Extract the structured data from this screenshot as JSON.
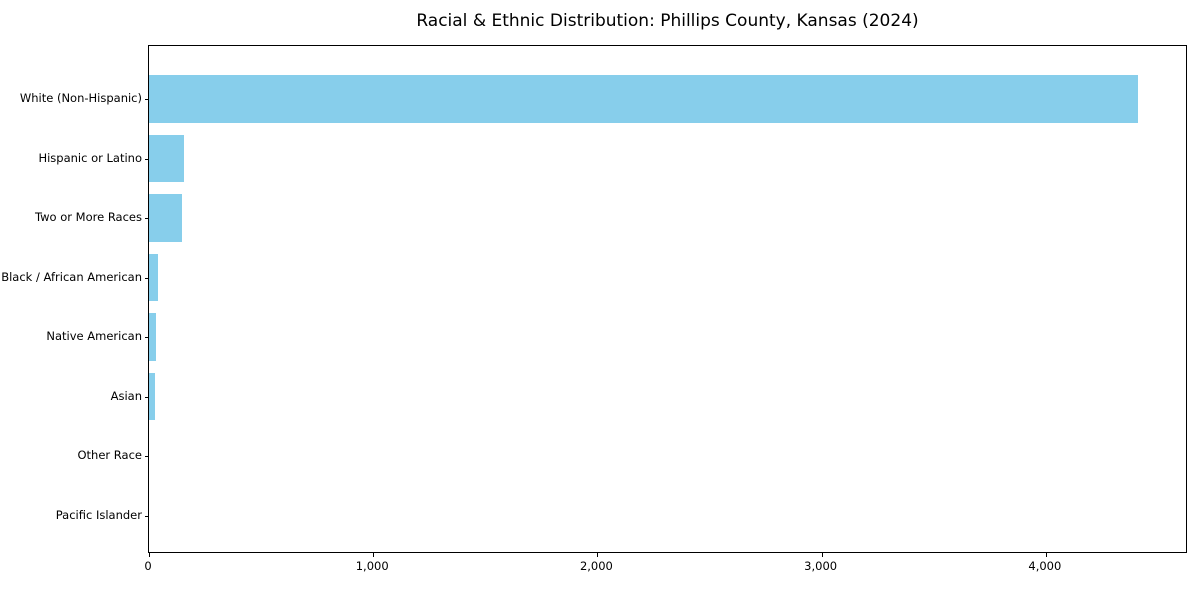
{
  "chart_data": {
    "type": "bar",
    "orientation": "horizontal",
    "title": "Racial & Ethnic Distribution: Phillips County, Kansas (2024)",
    "categories": [
      "White (Non-Hispanic)",
      "Hispanic or Latino",
      "Two or More Races",
      "Black / African American",
      "Native American",
      "Asian",
      "Other Race",
      "Pacific Islander"
    ],
    "values": [
      4410,
      155,
      148,
      39,
      33,
      26,
      0,
      0
    ],
    "xlabel": "",
    "ylabel": "",
    "xticks": [
      0,
      1000,
      2000,
      3000,
      4000
    ],
    "xtick_labels": [
      "0",
      "1,000",
      "2,000",
      "3,000",
      "4,000"
    ],
    "xlim": [
      0,
      4634
    ],
    "grid": false,
    "legend": "none",
    "sort_order": "descending",
    "colors": {
      "bar": "#87CEEB",
      "axis": "#000000",
      "background": "#ffffff",
      "text": "#000000"
    }
  }
}
